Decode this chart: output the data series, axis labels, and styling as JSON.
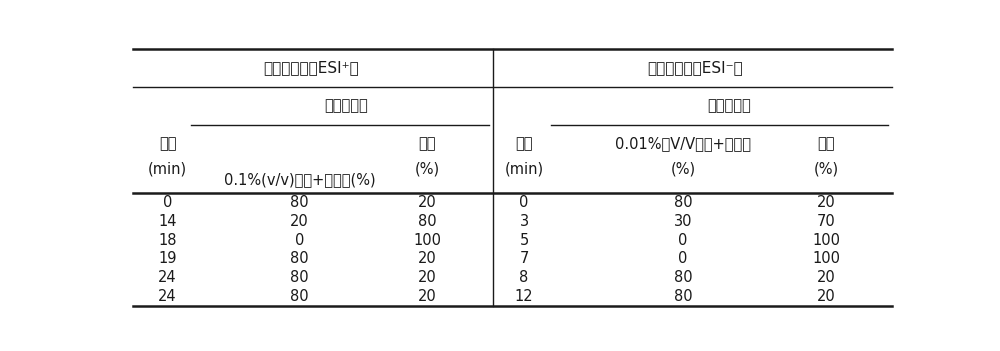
{
  "title_left": "正离子模式（ESI⁺）",
  "title_right": "负离子模式（ESI⁻）",
  "sub_header": "流动相比例",
  "col0_header_line1": "时间",
  "col0_header_line2": "(min)",
  "col1_header": "0.1%(v/v)甲酸+超纯水(%)",
  "col2_header_line1": "甲醇",
  "col2_header_line2": "(%)",
  "col3_header_line1": "时间",
  "col3_header_line2": "(min)",
  "col4_header_line1": "0.01%（V/V）氨+超纯水",
  "col4_header_line2": "(%)",
  "col5_header_line1": "甲醇",
  "col5_header_line2": "(%)",
  "left_data": [
    [
      "0",
      "80",
      "20"
    ],
    [
      "14",
      "20",
      "80"
    ],
    [
      "18",
      "0",
      "100"
    ],
    [
      "19",
      "80",
      "20"
    ],
    [
      "24",
      "80",
      "20"
    ],
    [
      "24",
      "80",
      "20"
    ]
  ],
  "right_data": [
    [
      "0",
      "80",
      "20"
    ],
    [
      "3",
      "30",
      "70"
    ],
    [
      "5",
      "0",
      "100"
    ],
    [
      "7",
      "0",
      "100"
    ],
    [
      "8",
      "80",
      "20"
    ],
    [
      "12",
      "80",
      "20"
    ]
  ],
  "bg_color": "#ffffff",
  "text_color": "#1a1a1a",
  "line_color": "#1a1a1a",
  "font_size": 10.5,
  "figsize": [
    10.0,
    3.51
  ],
  "dpi": 100
}
